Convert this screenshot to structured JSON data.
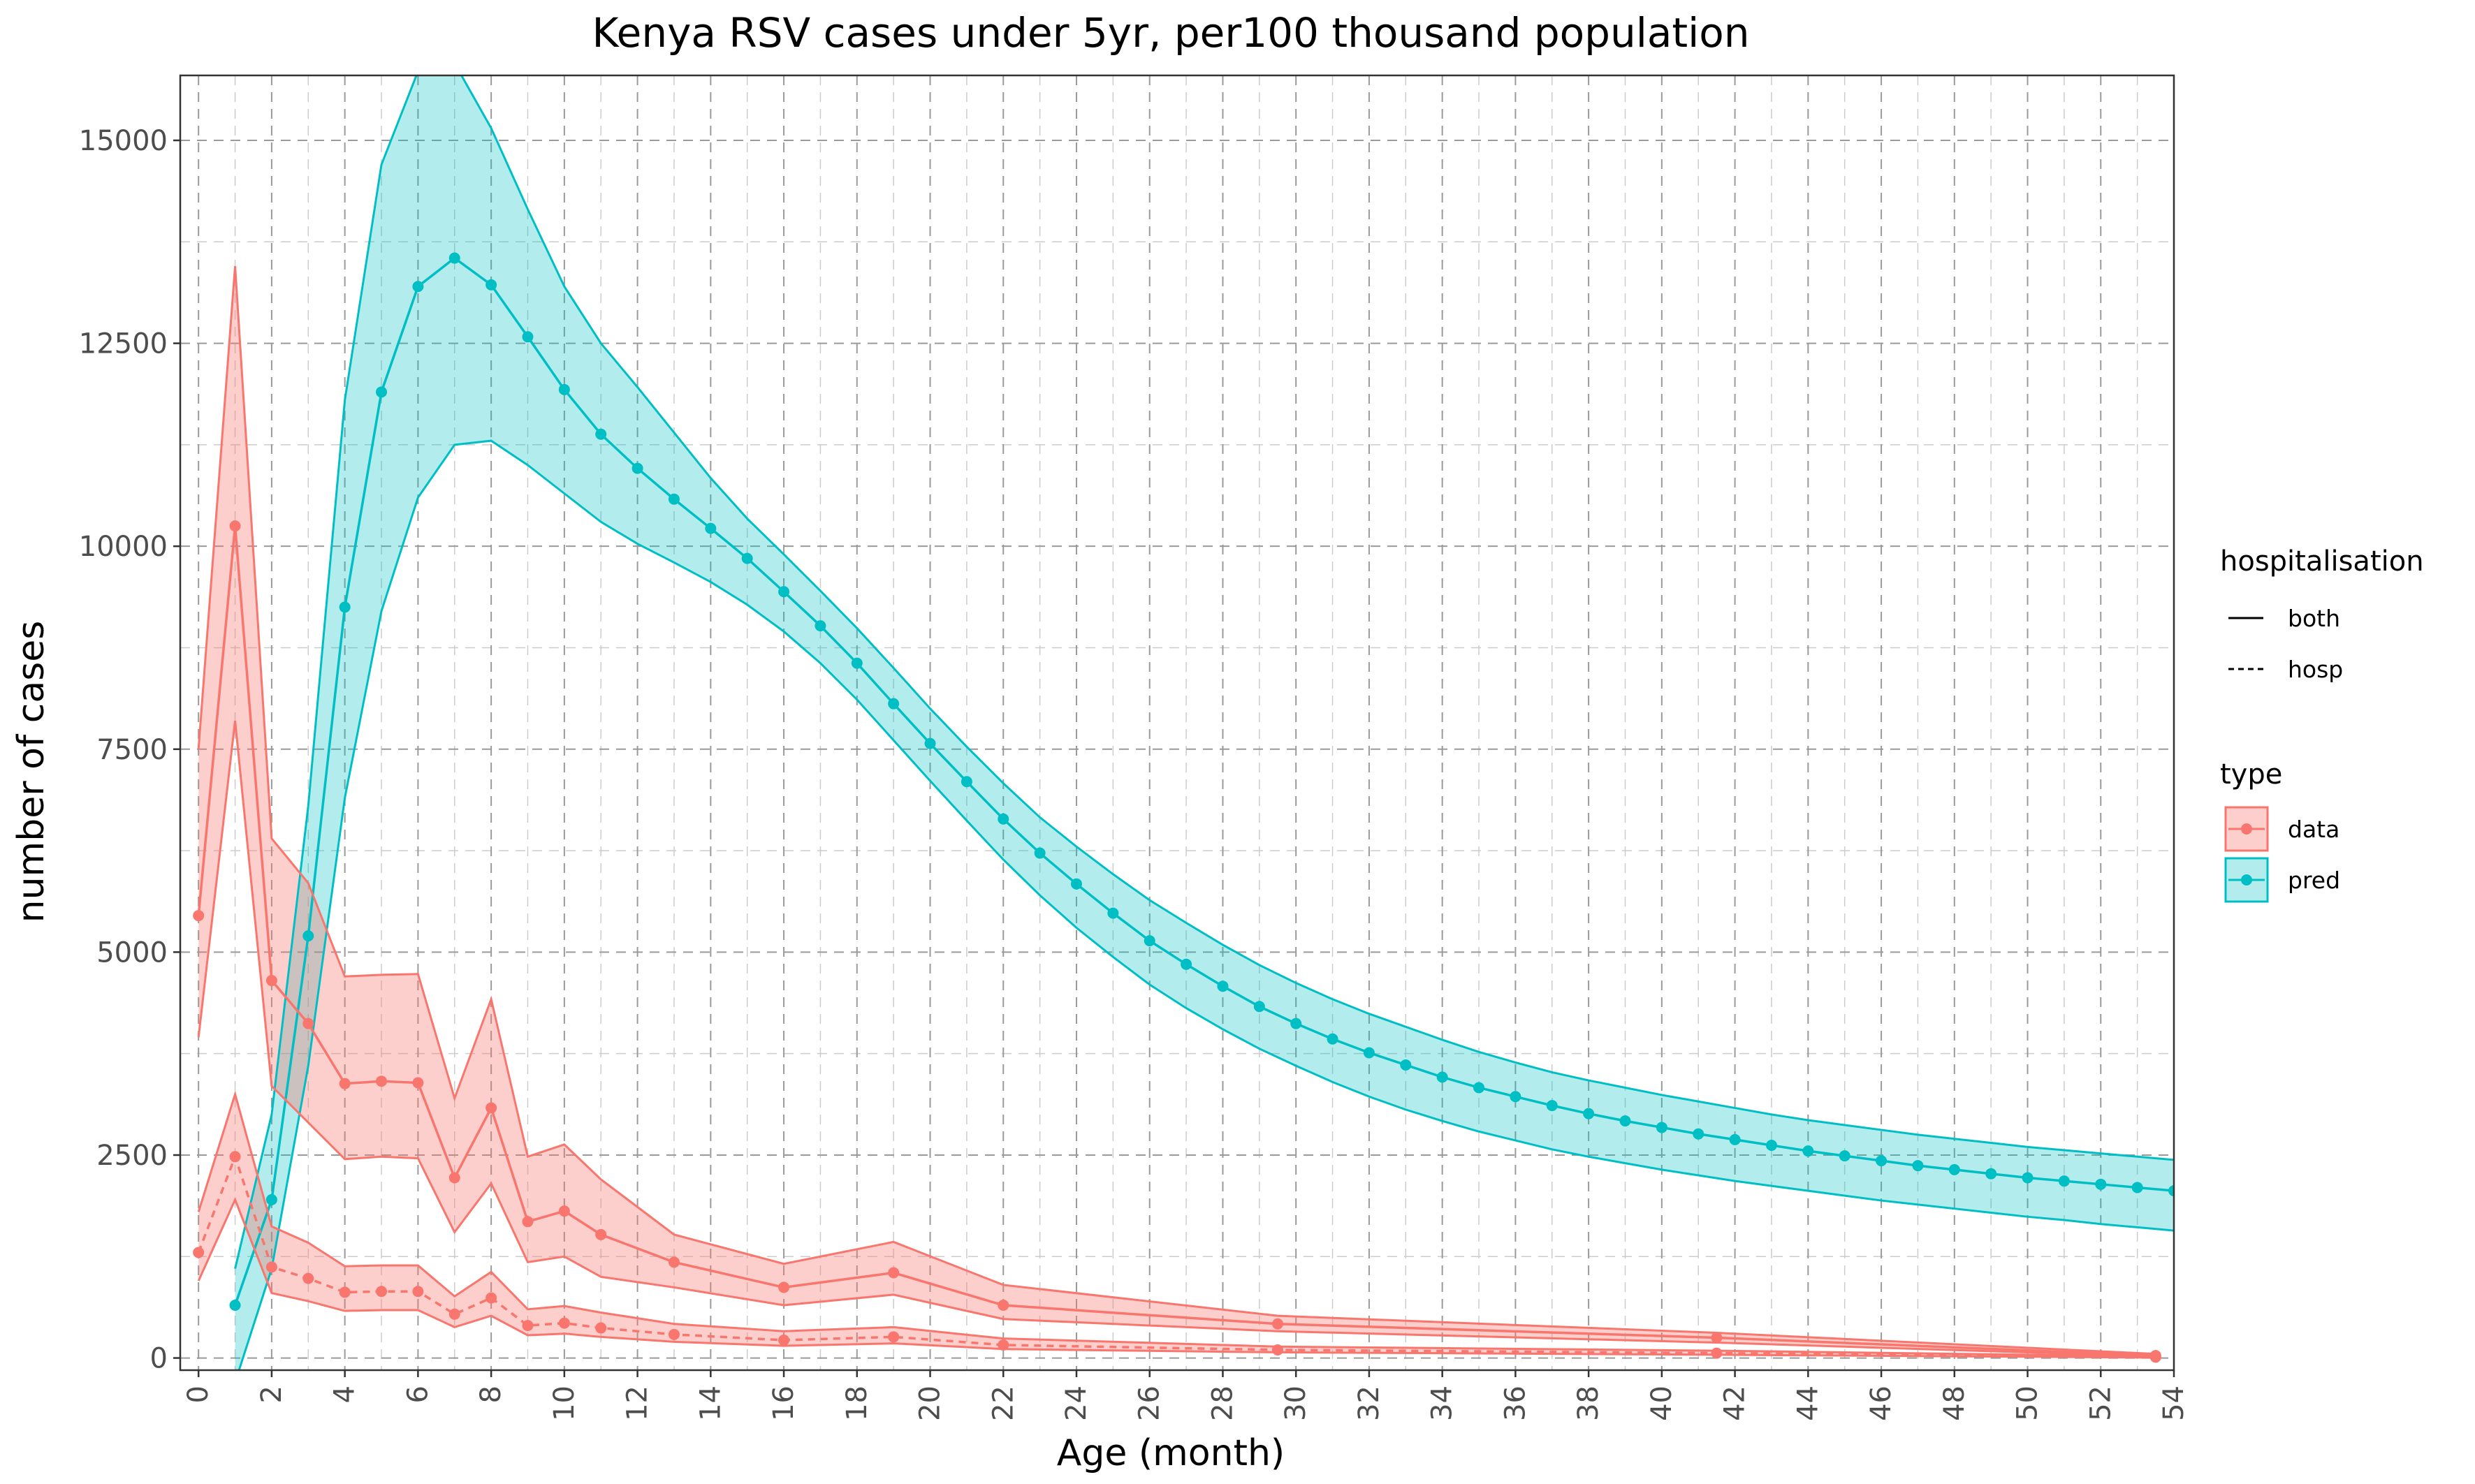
{
  "chart_data": {
    "type": "line",
    "title": "Kenya RSV cases under 5yr, per100 thousand population",
    "xlabel": "Age (month)",
    "ylabel": "number of cases",
    "xlim": [
      -0.5,
      54
    ],
    "ylim": [
      -150,
      15800
    ],
    "x_ticks": [
      0,
      2,
      4,
      6,
      8,
      10,
      12,
      14,
      16,
      18,
      20,
      22,
      24,
      26,
      28,
      30,
      32,
      34,
      36,
      38,
      40,
      42,
      44,
      46,
      48,
      50,
      52,
      54
    ],
    "y_ticks": [
      0,
      2500,
      5000,
      7500,
      10000,
      12500,
      15000
    ],
    "y_tick_labels": [
      "0",
      "2500",
      "5000",
      "7500",
      "10000",
      "12500",
      "15000"
    ],
    "grid": true,
    "legend_position": "right",
    "colors": {
      "data": "#F8766D",
      "pred": "#00BFC4",
      "data_fill": "#F8766D",
      "pred_fill": "#00BFC4"
    },
    "legend": {
      "linetype_title": "hospitalisation",
      "linetype_entries": [
        {
          "label": "both",
          "dash": "solid"
        },
        {
          "label": "hosp",
          "dash": "dashed"
        }
      ],
      "color_title": "type",
      "color_entries": [
        {
          "label": "data",
          "key": "data"
        },
        {
          "label": "pred",
          "key": "pred"
        }
      ]
    },
    "series": [
      {
        "type_key": "pred",
        "linetype": "solid",
        "x": [
          1,
          2,
          3,
          4,
          5,
          6,
          7,
          8,
          9,
          10,
          11,
          12,
          13,
          14,
          15,
          16,
          17,
          18,
          19,
          20,
          21,
          22,
          23,
          24,
          25,
          26,
          27,
          28,
          29,
          30,
          31,
          32,
          33,
          34,
          35,
          36,
          37,
          38,
          39,
          40,
          41,
          42,
          43,
          44,
          45,
          46,
          47,
          48,
          49,
          50,
          51,
          52,
          53,
          54
        ],
        "y": [
          650,
          1950,
          5200,
          9250,
          11900,
          13200,
          13550,
          13220,
          12580,
          11930,
          11380,
          10960,
          10580,
          10220,
          9850,
          9440,
          9020,
          8560,
          8060,
          7570,
          7100,
          6640,
          6220,
          5840,
          5480,
          5140,
          4850,
          4580,
          4330,
          4120,
          3930,
          3760,
          3610,
          3460,
          3330,
          3220,
          3110,
          3010,
          2920,
          2840,
          2760,
          2690,
          2620,
          2550,
          2490,
          2430,
          2370,
          2320,
          2270,
          2220,
          2180,
          2140,
          2100,
          2060
        ],
        "lower": [
          -300,
          1100,
          3600,
          6900,
          9200,
          10600,
          11250,
          11300,
          11000,
          10650,
          10300,
          10030,
          9800,
          9560,
          9280,
          8950,
          8560,
          8110,
          7610,
          7110,
          6620,
          6140,
          5700,
          5300,
          4940,
          4600,
          4310,
          4050,
          3810,
          3600,
          3400,
          3220,
          3060,
          2920,
          2790,
          2680,
          2570,
          2480,
          2400,
          2320,
          2250,
          2180,
          2120,
          2060,
          2000,
          1940,
          1890,
          1840,
          1790,
          1740,
          1700,
          1650,
          1610,
          1570
        ],
        "upper": [
          1100,
          3000,
          6800,
          11800,
          14700,
          15850,
          15950,
          15150,
          14150,
          13200,
          12500,
          11960,
          11400,
          10840,
          10340,
          9900,
          9450,
          8990,
          8500,
          8000,
          7530,
          7080,
          6660,
          6300,
          5960,
          5640,
          5360,
          5090,
          4840,
          4620,
          4420,
          4240,
          4080,
          3920,
          3770,
          3640,
          3520,
          3420,
          3330,
          3240,
          3160,
          3080,
          3000,
          2930,
          2870,
          2810,
          2750,
          2700,
          2650,
          2600,
          2560,
          2520,
          2480,
          2440
        ]
      },
      {
        "type_key": "data",
        "linetype": "solid",
        "x": [
          0,
          1,
          2,
          3,
          4,
          5,
          6,
          7,
          8,
          9,
          10,
          11,
          13,
          16,
          19,
          22,
          29.5,
          41.5,
          53.5
        ],
        "y": [
          5450,
          10250,
          4650,
          4120,
          3380,
          3410,
          3390,
          2220,
          3080,
          1680,
          1810,
          1520,
          1180,
          870,
          1050,
          650,
          420,
          250,
          30
        ],
        "lower": [
          3950,
          7850,
          3350,
          2900,
          2450,
          2480,
          2460,
          1550,
          2150,
          1180,
          1250,
          1000,
          870,
          650,
          780,
          480,
          330,
          190,
          20
        ],
        "upper": [
          7500,
          13450,
          6400,
          5850,
          4700,
          4720,
          4730,
          3200,
          4420,
          2480,
          2630,
          2200,
          1520,
          1160,
          1430,
          900,
          520,
          310,
          50
        ]
      },
      {
        "type_key": "data",
        "linetype": "dashed",
        "x": [
          0,
          1,
          2,
          3,
          4,
          5,
          6,
          7,
          8,
          9,
          10,
          11,
          13,
          16,
          19,
          22,
          29.5,
          41.5,
          53.5
        ],
        "y": [
          1300,
          2480,
          1120,
          980,
          810,
          820,
          820,
          540,
          740,
          400,
          430,
          370,
          290,
          220,
          260,
          160,
          100,
          60,
          10
        ],
        "lower": [
          950,
          1950,
          800,
          700,
          580,
          590,
          590,
          380,
          520,
          280,
          300,
          260,
          200,
          150,
          180,
          110,
          70,
          40,
          5
        ],
        "upper": [
          1800,
          3250,
          1620,
          1420,
          1130,
          1140,
          1140,
          760,
          1060,
          600,
          640,
          560,
          420,
          330,
          380,
          240,
          140,
          90,
          20
        ]
      }
    ]
  }
}
